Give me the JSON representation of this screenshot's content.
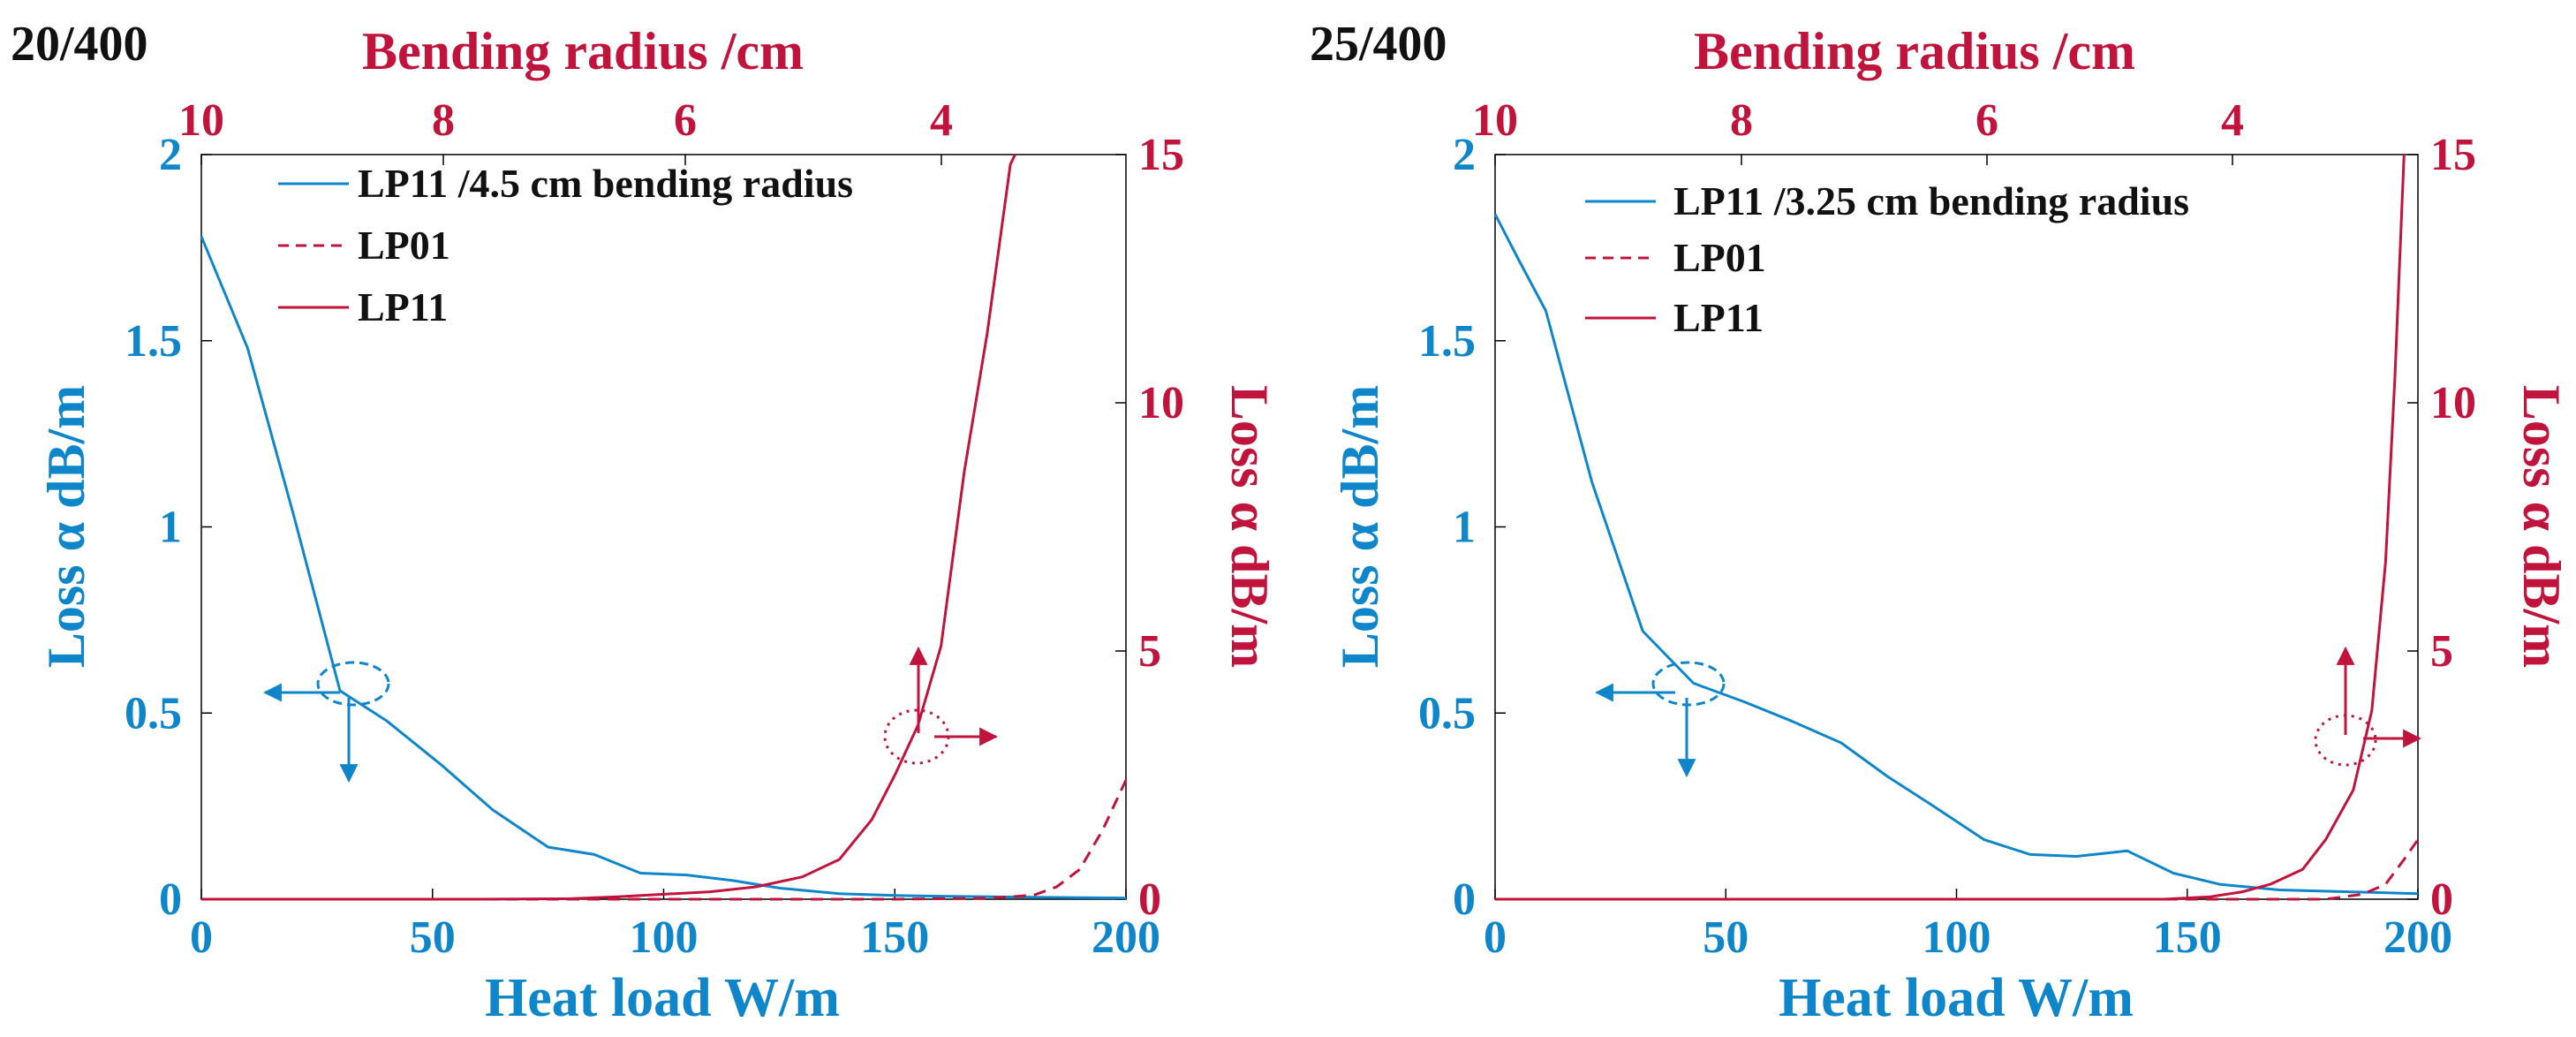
{
  "colors": {
    "blue": "#0e86c9",
    "red": "#c0143c",
    "axis": "#000000"
  },
  "chart_data": [
    {
      "type": "line",
      "panel_label": "20/400",
      "xlabel": "Heat load W/m",
      "x_ticks": [
        "0",
        "50",
        "100",
        "150",
        "200"
      ],
      "xlim": [
        0,
        200
      ],
      "top_xlabel": "Bending radius /cm",
      "top_ticks": [
        "10",
        "8",
        "6",
        "4"
      ],
      "ylabel_left": "Loss α dB/m",
      "y_left_ticks": [
        "0",
        "0.5",
        "1",
        "1.5",
        "2"
      ],
      "ylim_left": [
        0,
        2
      ],
      "ylabel_right": "Loss α dB/m",
      "y_right_ticks": [
        "0",
        "5",
        "10",
        "15"
      ],
      "ylim_right": [
        0,
        15
      ],
      "legend": [
        "LP11 /4.5 cm bending radius",
        "LP01",
        "LP11"
      ],
      "series": [
        {
          "name": "LP11 /4.5 cm bending radius",
          "axis": "left",
          "style": "solid-blue",
          "x": [
            0,
            10,
            20,
            30,
            40,
            52,
            63,
            75,
            85,
            95,
            105,
            115,
            125,
            138,
            150,
            160,
            175,
            190,
            200
          ],
          "y": [
            1.78,
            1.48,
            1.03,
            0.56,
            0.48,
            0.36,
            0.24,
            0.14,
            0.12,
            0.07,
            0.065,
            0.05,
            0.03,
            0.015,
            0.01,
            0.008,
            0.006,
            0.004,
            0.003
          ]
        },
        {
          "name": "LP01",
          "axis": "right",
          "style": "dashed-red",
          "x": [
            0,
            50,
            100,
            150,
            170,
            180,
            185,
            190,
            195,
            200
          ],
          "y": [
            0,
            0,
            0,
            0,
            0.02,
            0.08,
            0.25,
            0.6,
            1.4,
            2.4
          ]
        },
        {
          "name": "LP11",
          "axis": "right",
          "style": "solid-red",
          "x": [
            0,
            60,
            80,
            90,
            100,
            110,
            120,
            130,
            138,
            145,
            150,
            155,
            160,
            165,
            170,
            175,
            176
          ],
          "y": [
            0,
            0,
            0.01,
            0.05,
            0.1,
            0.15,
            0.25,
            0.45,
            0.8,
            1.6,
            2.5,
            3.5,
            5.1,
            8.6,
            11.4,
            14.8,
            15
          ]
        }
      ]
    },
    {
      "type": "line",
      "panel_label": "25/400",
      "xlabel": "Heat load W/m",
      "x_ticks": [
        "0",
        "50",
        "100",
        "150",
        "200"
      ],
      "xlim": [
        0,
        200
      ],
      "top_xlabel": "Bending radius /cm",
      "top_ticks": [
        "10",
        "8",
        "6",
        "4"
      ],
      "ylabel_left": "Loss α dB/m",
      "y_left_ticks": [
        "0",
        "0.5",
        "1",
        "1.5",
        "2"
      ],
      "ylim_left": [
        0,
        2
      ],
      "ylabel_right": "Loss α dB/m",
      "y_right_ticks": [
        "0",
        "5",
        "10",
        "15"
      ],
      "ylim_right": [
        0,
        15
      ],
      "legend": [
        "LP11 /3.25 cm bending radius",
        "LP01",
        "LP11"
      ],
      "series": [
        {
          "name": "LP11 /3.25 cm bending radius",
          "axis": "left",
          "style": "solid-blue",
          "x": [
            0,
            5,
            11,
            21,
            32,
            43,
            54,
            64,
            75,
            85,
            95,
            106,
            116,
            126,
            137,
            147,
            157,
            170,
            185,
            200
          ],
          "y": [
            1.84,
            1.72,
            1.58,
            1.12,
            0.72,
            0.58,
            0.53,
            0.48,
            0.42,
            0.33,
            0.25,
            0.16,
            0.12,
            0.115,
            0.13,
            0.07,
            0.04,
            0.025,
            0.02,
            0.015
          ]
        },
        {
          "name": "LP01",
          "axis": "right",
          "style": "dashed-red",
          "x": [
            0,
            100,
            150,
            180,
            188,
            193,
            197,
            200
          ],
          "y": [
            0,
            0,
            0,
            0,
            0.1,
            0.3,
            0.8,
            1.2
          ]
        },
        {
          "name": "LP11",
          "axis": "right",
          "style": "solid-red",
          "x": [
            0,
            145,
            155,
            162,
            168,
            175,
            180,
            186,
            190,
            193,
            195,
            197
          ],
          "y": [
            0,
            0,
            0.05,
            0.15,
            0.3,
            0.6,
            1.2,
            2.2,
            3.8,
            6.8,
            10.5,
            15
          ]
        }
      ]
    }
  ]
}
